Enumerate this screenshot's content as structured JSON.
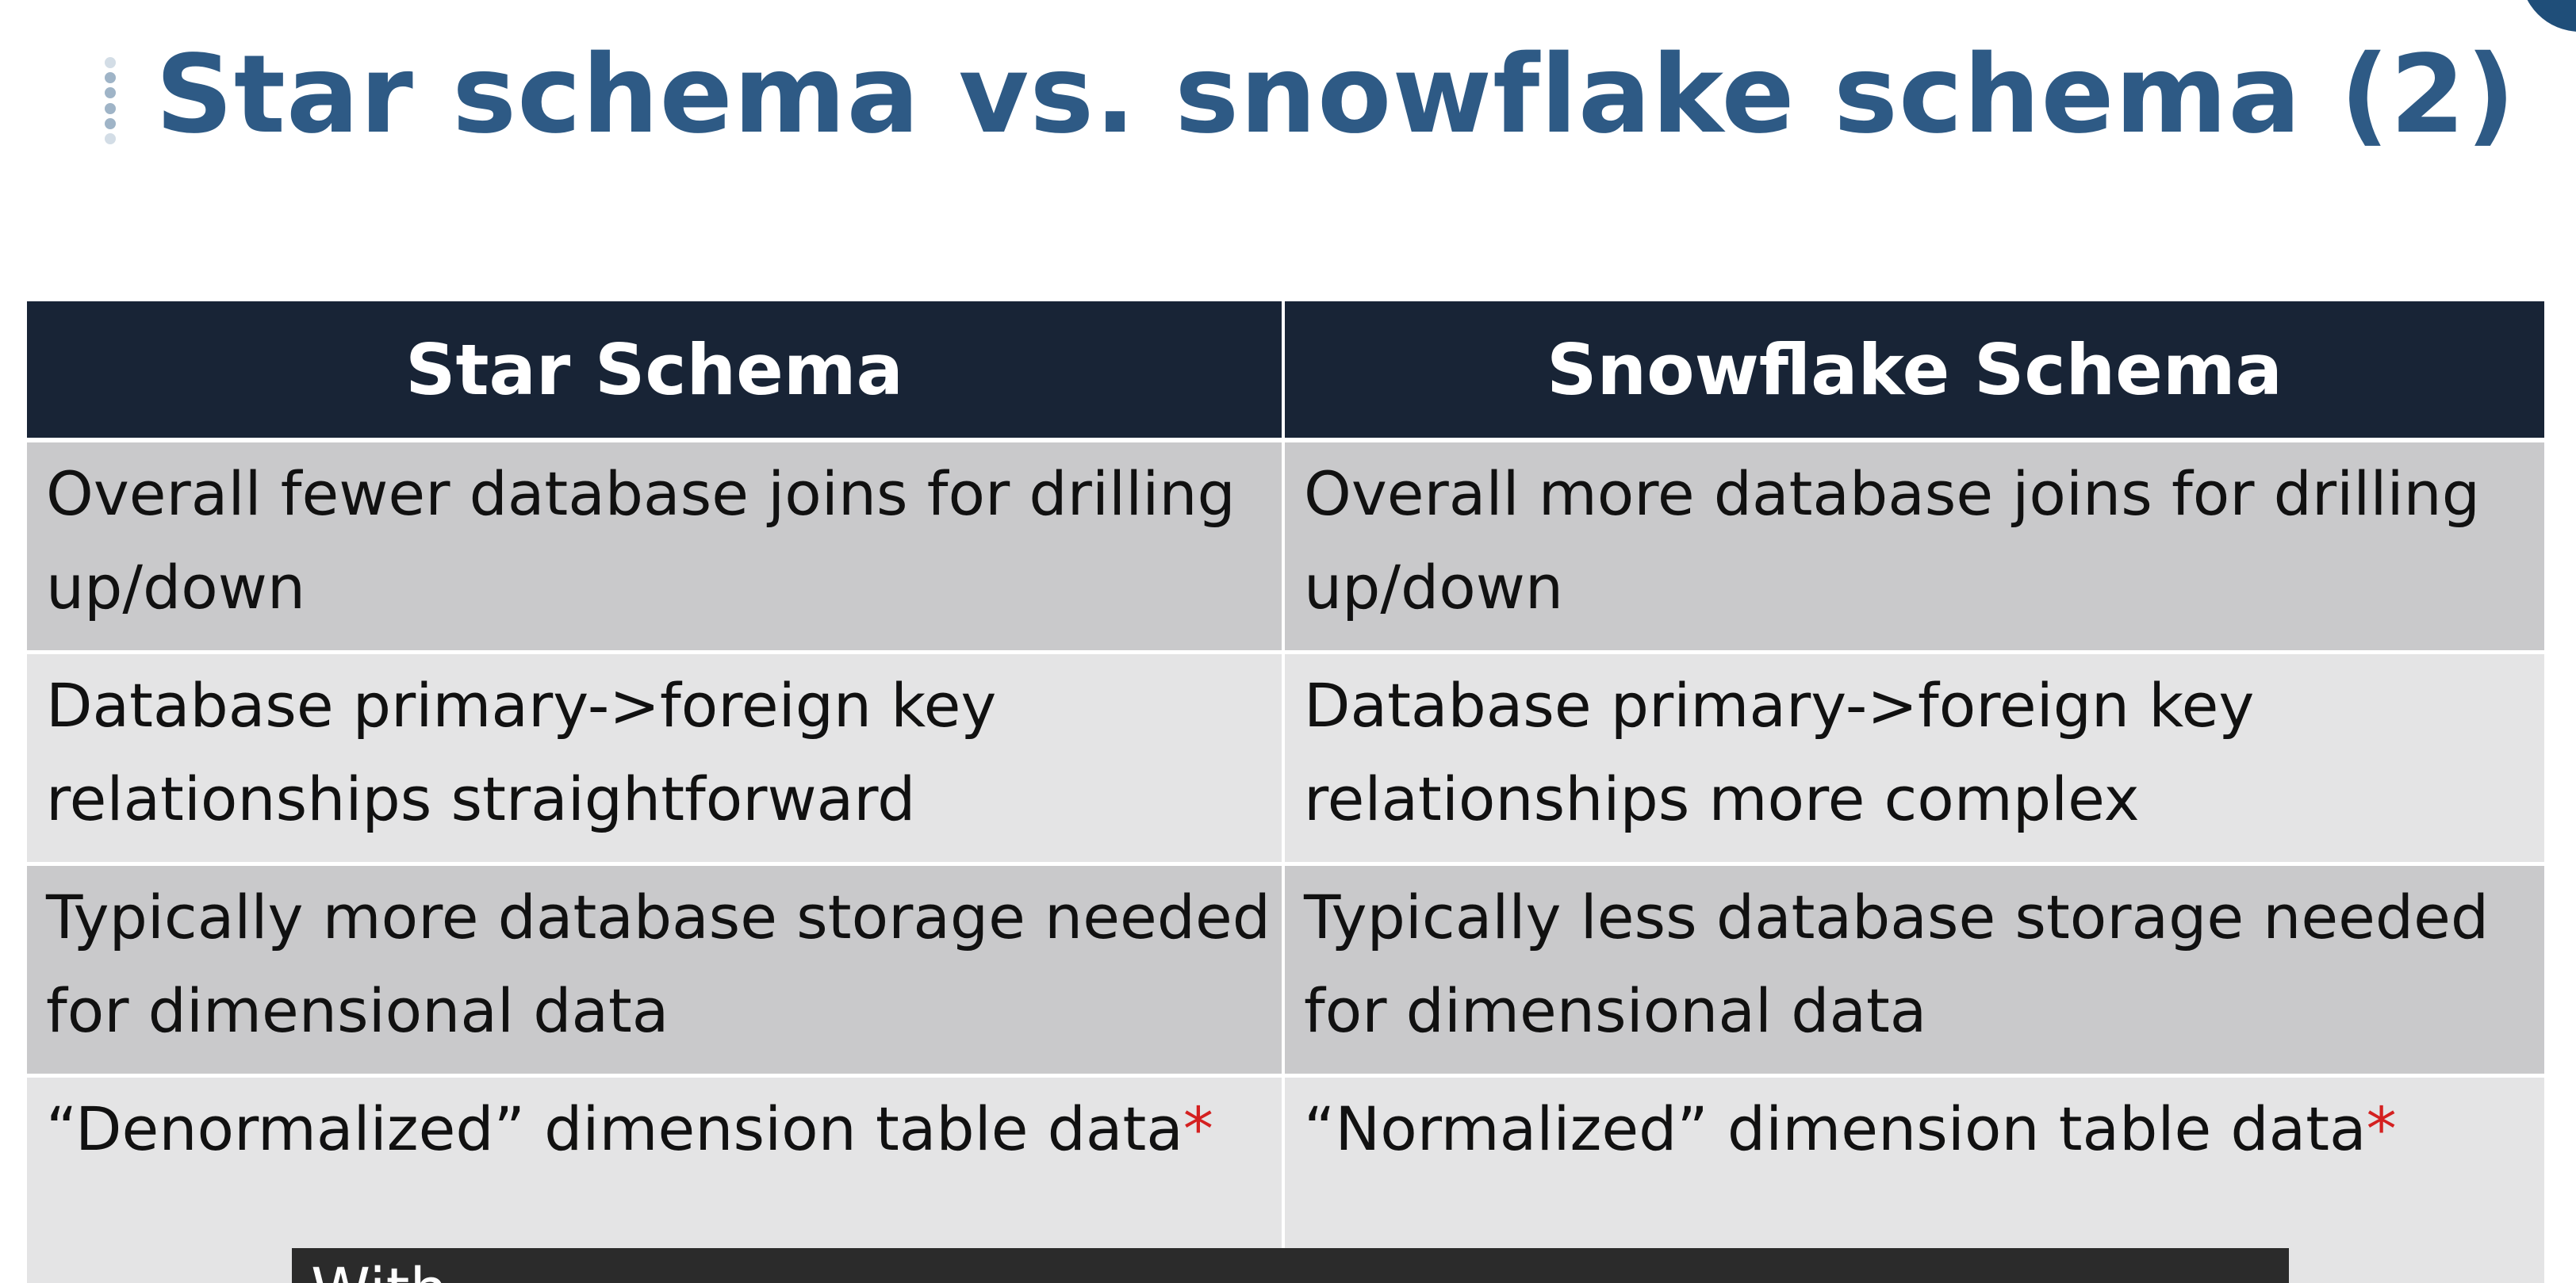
{
  "slide": {
    "title": "Star schema vs. snowflake schema (2)"
  },
  "table": {
    "headers": [
      "Star Schema",
      "Snowflake Schema"
    ],
    "rows": [
      {
        "star": "Overall fewer database joins for drilling up/down",
        "snowflake": "Overall more database joins for drilling up/down",
        "star_marker": "",
        "snowflake_marker": ""
      },
      {
        "star": "Database primary->foreign key relationships straightforward",
        "snowflake": "Database primary->foreign key relationships more complex",
        "star_marker": "",
        "snowflake_marker": ""
      },
      {
        "star": "Typically more database storage needed for dimensional data",
        "snowflake": "Typically less database storage needed for dimensional data",
        "star_marker": "",
        "snowflake_marker": ""
      },
      {
        "star": "“Denormalized” dimension table data",
        "snowflake": "“Normalized” dimension table data",
        "star_marker": "*",
        "snowflake_marker": "*"
      }
    ]
  },
  "caption": {
    "text": "With"
  },
  "colors": {
    "title": "#2e5a85",
    "header_bg": "#182436",
    "row_dark": "#c9c9cb",
    "row_light": "#e4e4e5",
    "asterisk": "#d42020"
  }
}
